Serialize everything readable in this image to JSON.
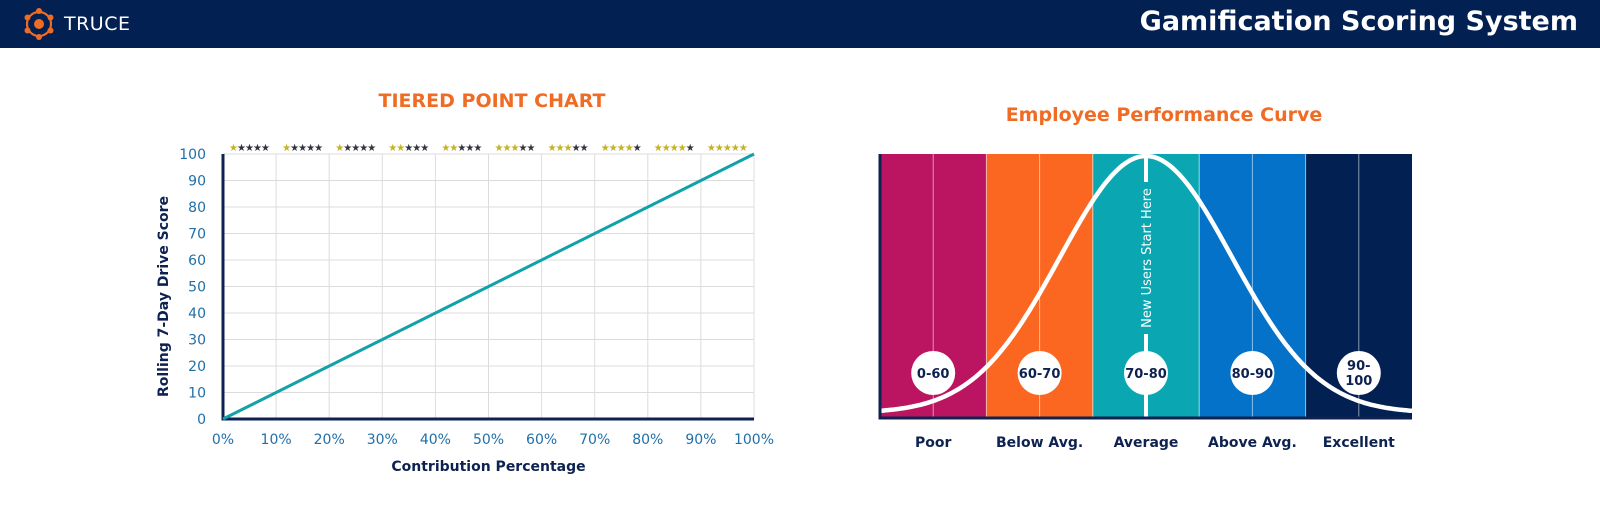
{
  "header": {
    "brand_name": "TRUCE",
    "title": "Gamification Scoring System"
  },
  "colors": {
    "header_bg": "#022052",
    "title_orange": "#f06b24",
    "axis_blue": "#1f6fa8",
    "line_teal": "#12a1a9",
    "star_gold": "#c6b21f",
    "star_dark": "#33343d"
  },
  "chart_data": [
    {
      "type": "line",
      "title": "TIERED POINT CHART",
      "xlabel": "Contribution Percentage",
      "ylabel": "Rolling 7-Day Drive Score",
      "x_ticks": [
        "0%",
        "10%",
        "20%",
        "30%",
        "40%",
        "50%",
        "60%",
        "70%",
        "80%",
        "90%",
        "100%"
      ],
      "y_ticks": [
        "0",
        "10",
        "20",
        "30",
        "40",
        "50",
        "60",
        "70",
        "80",
        "90",
        "100"
      ],
      "xlim": [
        0,
        100
      ],
      "ylim": [
        0,
        100
      ],
      "grid": true,
      "series": [
        {
          "x": [
            0,
            100
          ],
          "y": [
            0,
            100
          ]
        }
      ],
      "star_tiers": [
        1,
        1,
        1,
        2,
        2,
        3,
        3,
        4,
        4,
        5
      ],
      "stars_per_tier": 5
    },
    {
      "type": "area",
      "title": "Employee Performance Curve",
      "categories": [
        "Poor",
        "Below Avg.",
        "Average",
        "Above Avg.",
        "Excellent"
      ],
      "bands": [
        "0-60",
        "60-70",
        "70-80",
        "80-90",
        "90-100"
      ],
      "band_colors": [
        "#bb1460",
        "#fb6720",
        "#0aa7b2",
        "#0472c9",
        "#022052"
      ],
      "annotation": "New Users Start Here",
      "curve": "normal-distribution"
    }
  ]
}
